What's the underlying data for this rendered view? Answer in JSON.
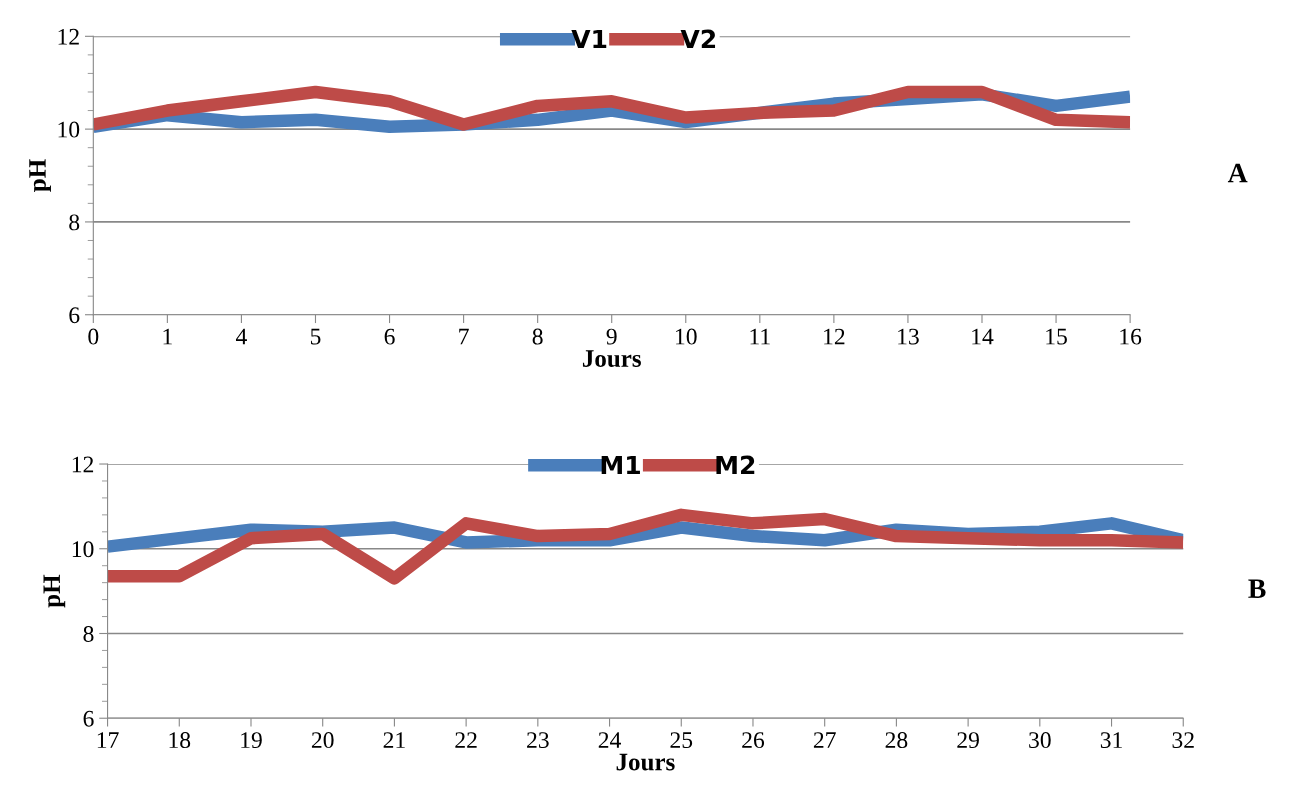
{
  "chart_data": [
    {
      "type": "line",
      "xlabel": "Jours",
      "ylabel": "pH",
      "annotations": [
        "A"
      ],
      "legend": "top",
      "grid": "y",
      "ylim": [
        6,
        12
      ],
      "yticks": [
        6,
        8,
        10,
        12
      ],
      "categories": [
        "0",
        "1",
        "4",
        "5",
        "6",
        "7",
        "8",
        "9",
        "10",
        "11",
        "12",
        "13",
        "14",
        "15",
        "16"
      ],
      "series": [
        {
          "name": "V1",
          "color": "#4a7ebb",
          "values": [
            10.05,
            10.3,
            10.15,
            10.2,
            10.05,
            10.1,
            10.2,
            10.4,
            10.15,
            10.35,
            10.55,
            10.65,
            10.75,
            10.5,
            10.7
          ]
        },
        {
          "name": "V2",
          "color": "#be4b48",
          "values": [
            10.1,
            10.4,
            10.6,
            10.8,
            10.6,
            10.1,
            10.5,
            10.6,
            10.25,
            10.35,
            10.4,
            10.8,
            10.8,
            10.2,
            10.15
          ]
        }
      ]
    },
    {
      "type": "line",
      "xlabel": "Jours",
      "ylabel": "pH",
      "annotations": [
        "B"
      ],
      "legend": "top",
      "grid": "y",
      "ylim": [
        6,
        12
      ],
      "yticks": [
        6,
        8,
        10,
        12
      ],
      "categories": [
        "17",
        "18",
        "19",
        "20",
        "21",
        "22",
        "23",
        "24",
        "25",
        "26",
        "27",
        "28",
        "29",
        "30",
        "31",
        "32"
      ],
      "series": [
        {
          "name": "M1",
          "color": "#4a7ebb",
          "values": [
            10.05,
            10.25,
            10.45,
            10.4,
            10.5,
            10.15,
            10.2,
            10.2,
            10.5,
            10.3,
            10.2,
            10.45,
            10.35,
            10.4,
            10.6,
            10.2
          ]
        },
        {
          "name": "M2",
          "color": "#be4b48",
          "values": [
            9.35,
            9.35,
            10.25,
            10.35,
            9.3,
            10.6,
            10.3,
            10.35,
            10.8,
            10.6,
            10.7,
            10.3,
            10.25,
            10.2,
            10.2,
            10.15
          ]
        }
      ]
    }
  ]
}
